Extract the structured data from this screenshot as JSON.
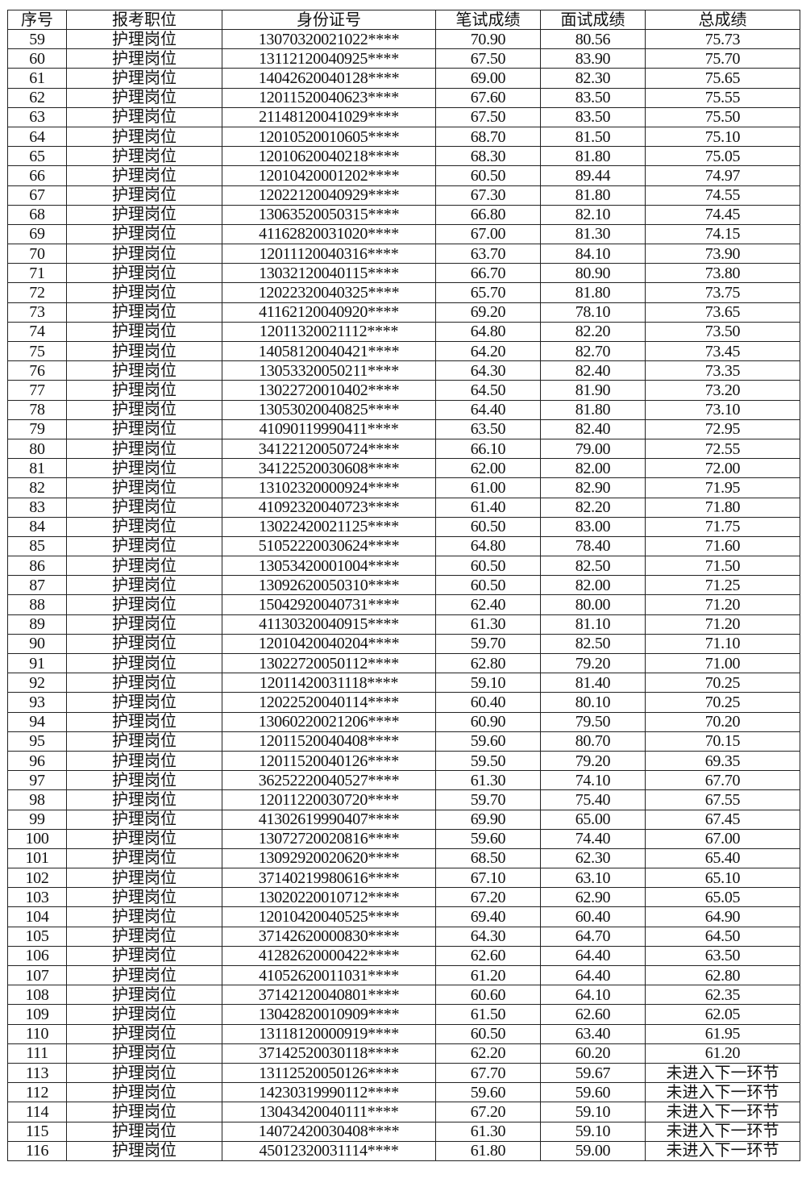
{
  "table": {
    "headers": [
      "序号",
      "报考职位",
      "身份证号",
      "笔试成绩",
      "面试成绩",
      "总成绩"
    ],
    "rows": [
      [
        "59",
        "护理岗位",
        "13070320021022****",
        "70.90",
        "80.56",
        "75.73"
      ],
      [
        "60",
        "护理岗位",
        "13112120040925****",
        "67.50",
        "83.90",
        "75.70"
      ],
      [
        "61",
        "护理岗位",
        "14042620040128****",
        "69.00",
        "82.30",
        "75.65"
      ],
      [
        "62",
        "护理岗位",
        "12011520040623****",
        "67.60",
        "83.50",
        "75.55"
      ],
      [
        "63",
        "护理岗位",
        "21148120041029****",
        "67.50",
        "83.50",
        "75.50"
      ],
      [
        "64",
        "护理岗位",
        "12010520010605****",
        "68.70",
        "81.50",
        "75.10"
      ],
      [
        "65",
        "护理岗位",
        "12010620040218****",
        "68.30",
        "81.80",
        "75.05"
      ],
      [
        "66",
        "护理岗位",
        "12010420001202****",
        "60.50",
        "89.44",
        "74.97"
      ],
      [
        "67",
        "护理岗位",
        "12022120040929****",
        "67.30",
        "81.80",
        "74.55"
      ],
      [
        "68",
        "护理岗位",
        "13063520050315****",
        "66.80",
        "82.10",
        "74.45"
      ],
      [
        "69",
        "护理岗位",
        "41162820031020****",
        "67.00",
        "81.30",
        "74.15"
      ],
      [
        "70",
        "护理岗位",
        "12011120040316****",
        "63.70",
        "84.10",
        "73.90"
      ],
      [
        "71",
        "护理岗位",
        "13032120040115****",
        "66.70",
        "80.90",
        "73.80"
      ],
      [
        "72",
        "护理岗位",
        "12022320040325****",
        "65.70",
        "81.80",
        "73.75"
      ],
      [
        "73",
        "护理岗位",
        "41162120040920****",
        "69.20",
        "78.10",
        "73.65"
      ],
      [
        "74",
        "护理岗位",
        "12011320021112****",
        "64.80",
        "82.20",
        "73.50"
      ],
      [
        "75",
        "护理岗位",
        "14058120040421****",
        "64.20",
        "82.70",
        "73.45"
      ],
      [
        "76",
        "护理岗位",
        "13053320050211****",
        "64.30",
        "82.40",
        "73.35"
      ],
      [
        "77",
        "护理岗位",
        "13022720010402****",
        "64.50",
        "81.90",
        "73.20"
      ],
      [
        "78",
        "护理岗位",
        "13053020040825****",
        "64.40",
        "81.80",
        "73.10"
      ],
      [
        "79",
        "护理岗位",
        "41090119990411****",
        "63.50",
        "82.40",
        "72.95"
      ],
      [
        "80",
        "护理岗位",
        "34122120050724****",
        "66.10",
        "79.00",
        "72.55"
      ],
      [
        "81",
        "护理岗位",
        "34122520030608****",
        "62.00",
        "82.00",
        "72.00"
      ],
      [
        "82",
        "护理岗位",
        "13102320000924****",
        "61.00",
        "82.90",
        "71.95"
      ],
      [
        "83",
        "护理岗位",
        "41092320040723****",
        "61.40",
        "82.20",
        "71.80"
      ],
      [
        "84",
        "护理岗位",
        "13022420021125****",
        "60.50",
        "83.00",
        "71.75"
      ],
      [
        "85",
        "护理岗位",
        "51052220030624****",
        "64.80",
        "78.40",
        "71.60"
      ],
      [
        "86",
        "护理岗位",
        "13053420001004****",
        "60.50",
        "82.50",
        "71.50"
      ],
      [
        "87",
        "护理岗位",
        "13092620050310****",
        "60.50",
        "82.00",
        "71.25"
      ],
      [
        "88",
        "护理岗位",
        "15042920040731****",
        "62.40",
        "80.00",
        "71.20"
      ],
      [
        "89",
        "护理岗位",
        "41130320040915****",
        "61.30",
        "81.10",
        "71.20"
      ],
      [
        "90",
        "护理岗位",
        "12010420040204****",
        "59.70",
        "82.50",
        "71.10"
      ],
      [
        "91",
        "护理岗位",
        "13022720050112****",
        "62.80",
        "79.20",
        "71.00"
      ],
      [
        "92",
        "护理岗位",
        "12011420031118****",
        "59.10",
        "81.40",
        "70.25"
      ],
      [
        "93",
        "护理岗位",
        "12022520040114****",
        "60.40",
        "80.10",
        "70.25"
      ],
      [
        "94",
        "护理岗位",
        "13060220021206****",
        "60.90",
        "79.50",
        "70.20"
      ],
      [
        "95",
        "护理岗位",
        "12011520040408****",
        "59.60",
        "80.70",
        "70.15"
      ],
      [
        "96",
        "护理岗位",
        "12011520040126****",
        "59.50",
        "79.20",
        "69.35"
      ],
      [
        "97",
        "护理岗位",
        "36252220040527****",
        "61.30",
        "74.10",
        "67.70"
      ],
      [
        "98",
        "护理岗位",
        "12011220030720****",
        "59.70",
        "75.40",
        "67.55"
      ],
      [
        "99",
        "护理岗位",
        "41302619990407****",
        "69.90",
        "65.00",
        "67.45"
      ],
      [
        "100",
        "护理岗位",
        "13072720020816****",
        "59.60",
        "74.40",
        "67.00"
      ],
      [
        "101",
        "护理岗位",
        "13092920020620****",
        "68.50",
        "62.30",
        "65.40"
      ],
      [
        "102",
        "护理岗位",
        "37140219980616****",
        "67.10",
        "63.10",
        "65.10"
      ],
      [
        "103",
        "护理岗位",
        "13020220010712****",
        "67.20",
        "62.90",
        "65.05"
      ],
      [
        "104",
        "护理岗位",
        "12010420040525****",
        "69.40",
        "60.40",
        "64.90"
      ],
      [
        "105",
        "护理岗位",
        "37142620000830****",
        "64.30",
        "64.70",
        "64.50"
      ],
      [
        "106",
        "护理岗位",
        "41282620000422****",
        "62.60",
        "64.40",
        "63.50"
      ],
      [
        "107",
        "护理岗位",
        "41052620011031****",
        "61.20",
        "64.40",
        "62.80"
      ],
      [
        "108",
        "护理岗位",
        "37142120040801****",
        "60.60",
        "64.10",
        "62.35"
      ],
      [
        "109",
        "护理岗位",
        "13042820010909****",
        "61.50",
        "62.60",
        "62.05"
      ],
      [
        "110",
        "护理岗位",
        "13118120000919****",
        "60.50",
        "63.40",
        "61.95"
      ],
      [
        "111",
        "护理岗位",
        "37142520030118****",
        "62.20",
        "60.20",
        "61.20"
      ],
      [
        "113",
        "护理岗位",
        "13112520050126****",
        "67.70",
        "59.67",
        "未进入下一环节"
      ],
      [
        "112",
        "护理岗位",
        "14230319990112****",
        "59.60",
        "59.60",
        "未进入下一环节"
      ],
      [
        "114",
        "护理岗位",
        "13043420040111****",
        "67.20",
        "59.10",
        "未进入下一环节"
      ],
      [
        "115",
        "护理岗位",
        "14072420030408****",
        "61.30",
        "59.10",
        "未进入下一环节"
      ],
      [
        "116",
        "护理岗位",
        "45012320031114****",
        "61.80",
        "59.00",
        "未进入下一环节"
      ]
    ]
  }
}
